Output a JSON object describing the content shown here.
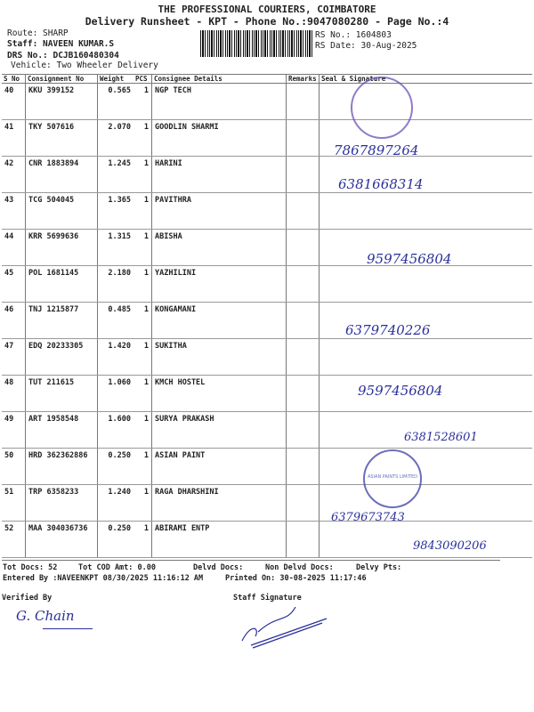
{
  "header": {
    "company": "THE PROFESSIONAL COURIERS, COIMBATORE",
    "subtitle": "Delivery Runsheet - KPT - Phone No.:9047080280 - Page No.:4",
    "route": "Route: SHARP",
    "staff": "Staff: NAVEEN KUMAR.S",
    "drs": "DRS No.: DCJB160480304",
    "vehicle": "Vehicle: Two Wheeler Delivery",
    "rs_no": "RS No.: 1604803",
    "rs_date": "RS Date: 30-Aug-2025"
  },
  "table": {
    "columns": [
      "S No",
      "Consignment No",
      "Weight",
      "PCS",
      "Consignee Details",
      "Remarks",
      "Seal & Signature"
    ],
    "rows": [
      {
        "sno": "40",
        "cno": "KKU 399152",
        "weight": "0.565",
        "pcs": "1",
        "consignee": "NGP TECH"
      },
      {
        "sno": "41",
        "cno": "TKY 507616",
        "weight": "2.070",
        "pcs": "1",
        "consignee": "GOODLIN SHARMI"
      },
      {
        "sno": "42",
        "cno": "CNR 1883894",
        "weight": "1.245",
        "pcs": "1",
        "consignee": "HARINI"
      },
      {
        "sno": "43",
        "cno": "TCG 504045",
        "weight": "1.365",
        "pcs": "1",
        "consignee": "PAVITHRA"
      },
      {
        "sno": "44",
        "cno": "KRR 5699636",
        "weight": "1.315",
        "pcs": "1",
        "consignee": "ABISHA"
      },
      {
        "sno": "45",
        "cno": "POL 1681145",
        "weight": "2.180",
        "pcs": "1",
        "consignee": "YAZHILINI"
      },
      {
        "sno": "46",
        "cno": "TNJ 1215877",
        "weight": "0.485",
        "pcs": "1",
        "consignee": "KONGAMANI"
      },
      {
        "sno": "47",
        "cno": "EDQ 20233305",
        "weight": "1.420",
        "pcs": "1",
        "consignee": "SUKITHA"
      },
      {
        "sno": "48",
        "cno": "TUT 211615",
        "weight": "1.060",
        "pcs": "1",
        "consignee": "KMCH HOSTEL"
      },
      {
        "sno": "49",
        "cno": "ART 1958548",
        "weight": "1.600",
        "pcs": "1",
        "consignee": "SURYA PRAKASH"
      },
      {
        "sno": "50",
        "cno": "HRD 362362886",
        "weight": "0.250",
        "pcs": "1",
        "consignee": "ASIAN PAINT"
      },
      {
        "sno": "51",
        "cno": "TRP 6358233",
        "weight": "1.240",
        "pcs": "1",
        "consignee": "RAGA DHARSHINI"
      },
      {
        "sno": "52",
        "cno": "MAA 304036736",
        "weight": "0.250",
        "pcs": "1",
        "consignee": "ABIRAMI ENTP"
      }
    ]
  },
  "handwriting": {
    "h41": "7867897264",
    "h42": "6381668314",
    "h44": "9597456804",
    "h46": "6379740226",
    "h48": "9597456804",
    "h49": "6381528601",
    "h51": "6379673743",
    "h52": "9843090206",
    "sig_verified": "G. Chain"
  },
  "stamp_text": "ASIAN PAINTS LIMITED",
  "footer": {
    "tot_docs": "Tot Docs:  52",
    "tot_cod": "Tot COD Amt:    0.00",
    "delvd": "Delvd Docs:",
    "non_delvd": "Non Delvd Docs:",
    "delvy_pts": "Delvy Pts:",
    "entered_by": "Entered By :NAVEENKPT 08/30/2025 11:16:12 AM",
    "printed_on": "Printed On: 30-08-2025 11:17:46",
    "verified_by": "Verified By",
    "staff_signature": "Staff Signature"
  },
  "colors": {
    "ink": "#2a2f9a",
    "stamp": "#6a4fb5"
  }
}
